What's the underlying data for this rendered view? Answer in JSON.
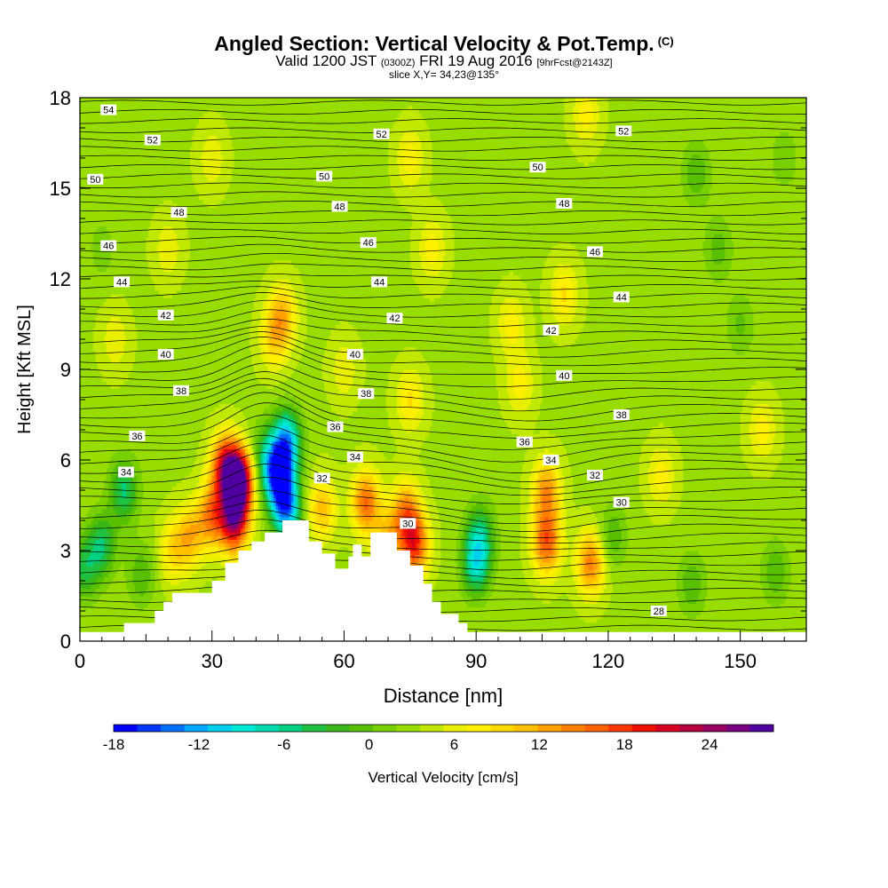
{
  "title": {
    "main": "Angled Section: Vertical Velocity & Pot.Temp.",
    "copyright": "(C)",
    "valid_a": "Valid 1200 JST",
    "valid_z": "(0300Z)",
    "valid_b": "FRI 19 Aug 2016",
    "fcst": "[9hrFcst@2143Z]",
    "slice": "slice X,Y= 34,23@135°"
  },
  "chart_data": {
    "type": "heatmap",
    "xlabel": "Distance [nm]",
    "ylabel": "Height [Kft MSL]",
    "xlim": [
      0,
      165
    ],
    "ylim": [
      0,
      18
    ],
    "xticks": [
      0,
      30,
      60,
      90,
      120,
      150
    ],
    "yticks": [
      0,
      3,
      6,
      9,
      12,
      15,
      18
    ],
    "colorbar": {
      "label": "Vertical Velocity [cm/s]",
      "ticks": [
        -18,
        -12,
        -6,
        0,
        6,
        12,
        18,
        24
      ],
      "range": [
        -18,
        28.5
      ],
      "step": 1.5,
      "colors": [
        "#0000ff",
        "#0038ff",
        "#0070ff",
        "#00a8ff",
        "#00d0f0",
        "#00e8d8",
        "#00dcb0",
        "#00d080",
        "#20c040",
        "#38b818",
        "#58c000",
        "#78d000",
        "#98dc00",
        "#c0e800",
        "#e8f000",
        "#fff000",
        "#ffd800",
        "#ffc000",
        "#ffa000",
        "#ff8000",
        "#ff6000",
        "#ff3800",
        "#f01000",
        "#d80020",
        "#b80040",
        "#980060",
        "#780080",
        "#5000a0"
      ]
    },
    "terrain_profile": [
      [
        0,
        0.3
      ],
      [
        10,
        0.3
      ],
      [
        10,
        0.6
      ],
      [
        17,
        0.6
      ],
      [
        17,
        1.0
      ],
      [
        19,
        1.0
      ],
      [
        19,
        1.3
      ],
      [
        21,
        1.3
      ],
      [
        21,
        1.6
      ],
      [
        30,
        1.6
      ],
      [
        30,
        2.0
      ],
      [
        33,
        2.0
      ],
      [
        33,
        2.6
      ],
      [
        36,
        2.6
      ],
      [
        36,
        3.0
      ],
      [
        39,
        3.0
      ],
      [
        39,
        3.3
      ],
      [
        42,
        3.3
      ],
      [
        42,
        3.6
      ],
      [
        46,
        3.6
      ],
      [
        46,
        4.0
      ],
      [
        52,
        4.0
      ],
      [
        52,
        3.3
      ],
      [
        55,
        3.3
      ],
      [
        55,
        2.9
      ],
      [
        58,
        2.9
      ],
      [
        58,
        2.4
      ],
      [
        61,
        2.4
      ],
      [
        61,
        2.8
      ],
      [
        62,
        2.8
      ],
      [
        62,
        3.2
      ],
      [
        64,
        3.2
      ],
      [
        64,
        2.8
      ],
      [
        66,
        2.8
      ],
      [
        66,
        3.6
      ],
      [
        72,
        3.6
      ],
      [
        72,
        3.0
      ],
      [
        75,
        3.0
      ],
      [
        75,
        2.5
      ],
      [
        78,
        2.5
      ],
      [
        78,
        1.9
      ],
      [
        80,
        1.9
      ],
      [
        80,
        1.3
      ],
      [
        82,
        1.3
      ],
      [
        82,
        0.9
      ],
      [
        86,
        0.9
      ],
      [
        86,
        0.6
      ],
      [
        88,
        0.6
      ],
      [
        88,
        0.3
      ],
      [
        165,
        0.3
      ]
    ],
    "contour_labels": [
      {
        "text": "54",
        "x": 6.5,
        "y": 17.6
      },
      {
        "text": "52",
        "x": 16.5,
        "y": 16.6
      },
      {
        "text": "52",
        "x": 68.5,
        "y": 16.8
      },
      {
        "text": "52",
        "x": 123.5,
        "y": 16.9
      },
      {
        "text": "50",
        "x": 3.5,
        "y": 15.3
      },
      {
        "text": "50",
        "x": 55.5,
        "y": 15.4
      },
      {
        "text": "50",
        "x": 104,
        "y": 15.7
      },
      {
        "text": "48",
        "x": 22.5,
        "y": 14.2
      },
      {
        "text": "48",
        "x": 59,
        "y": 14.4
      },
      {
        "text": "48",
        "x": 110,
        "y": 14.5
      },
      {
        "text": "46",
        "x": 6.5,
        "y": 13.1
      },
      {
        "text": "46",
        "x": 65.5,
        "y": 13.2
      },
      {
        "text": "46",
        "x": 117,
        "y": 12.9
      },
      {
        "text": "44",
        "x": 9.5,
        "y": 11.9
      },
      {
        "text": "44",
        "x": 68,
        "y": 11.9
      },
      {
        "text": "44",
        "x": 123,
        "y": 11.4
      },
      {
        "text": "42",
        "x": 19.5,
        "y": 10.8
      },
      {
        "text": "42",
        "x": 71.5,
        "y": 10.7
      },
      {
        "text": "42",
        "x": 107,
        "y": 10.3
      },
      {
        "text": "40",
        "x": 19.5,
        "y": 9.5
      },
      {
        "text": "40",
        "x": 62.5,
        "y": 9.5
      },
      {
        "text": "40",
        "x": 110,
        "y": 8.8
      },
      {
        "text": "38",
        "x": 23,
        "y": 8.3
      },
      {
        "text": "38",
        "x": 65,
        "y": 8.2
      },
      {
        "text": "38",
        "x": 123,
        "y": 7.5
      },
      {
        "text": "36",
        "x": 13,
        "y": 6.8
      },
      {
        "text": "36",
        "x": 58,
        "y": 7.1
      },
      {
        "text": "36",
        "x": 101,
        "y": 6.6
      },
      {
        "text": "34",
        "x": 10.5,
        "y": 5.6
      },
      {
        "text": "34",
        "x": 62.5,
        "y": 6.1
      },
      {
        "text": "34",
        "x": 107,
        "y": 6.0
      },
      {
        "text": "32",
        "x": 55,
        "y": 5.4
      },
      {
        "text": "32",
        "x": 117,
        "y": 5.5
      },
      {
        "text": "30",
        "x": 74.5,
        "y": 3.9
      },
      {
        "text": "30",
        "x": 123,
        "y": 4.6
      },
      {
        "text": "28",
        "x": 131.5,
        "y": 1.0
      }
    ],
    "velocity_features": [
      {
        "x": 36,
        "y": 5.3,
        "v": 23.5
      },
      {
        "x": 35,
        "y": 4.0,
        "v": 17
      },
      {
        "x": 33,
        "y": 5.8,
        "v": 14
      },
      {
        "x": 30,
        "y": 4.2,
        "v": 10
      },
      {
        "x": 25,
        "y": 3.5,
        "v": 7
      },
      {
        "x": 21,
        "y": 3.0,
        "v": 5
      },
      {
        "x": 45,
        "y": 5.5,
        "v": -17
      },
      {
        "x": 47,
        "y": 6.6,
        "v": -13
      },
      {
        "x": 47,
        "y": 4.4,
        "v": -14
      },
      {
        "x": 42,
        "y": 6.2,
        "v": -5
      },
      {
        "x": 10,
        "y": 5.0,
        "v": -7.5
      },
      {
        "x": 5,
        "y": 3.2,
        "v": -7
      },
      {
        "x": 1,
        "y": 2.4,
        "v": -6
      },
      {
        "x": 14,
        "y": 2.2,
        "v": -4
      },
      {
        "x": 55,
        "y": 4.4,
        "v": 7
      },
      {
        "x": 65,
        "y": 4.6,
        "v": 11
      },
      {
        "x": 70,
        "y": 3.4,
        "v": 6
      },
      {
        "x": 76,
        "y": 3.2,
        "v": 13
      },
      {
        "x": 74,
        "y": 4.3,
        "v": 9
      },
      {
        "x": 90,
        "y": 2.6,
        "v": -10
      },
      {
        "x": 91,
        "y": 3.6,
        "v": -6
      },
      {
        "x": 106,
        "y": 3.3,
        "v": 12
      },
      {
        "x": 106,
        "y": 5.0,
        "v": 9
      },
      {
        "x": 116,
        "y": 2.6,
        "v": 10
      },
      {
        "x": 121,
        "y": 3.5,
        "v": -4
      },
      {
        "x": 139,
        "y": 1.9,
        "v": -4
      },
      {
        "x": 158,
        "y": 2.3,
        "v": -4
      },
      {
        "x": 132,
        "y": 5.5,
        "v": 4
      },
      {
        "x": 44,
        "y": 10,
        "v": 5
      },
      {
        "x": 46,
        "y": 10.8,
        "v": 7
      },
      {
        "x": 75,
        "y": 8,
        "v": 5
      },
      {
        "x": 98,
        "y": 10.5,
        "v": 4
      },
      {
        "x": 100,
        "y": 8.5,
        "v": 4
      },
      {
        "x": 110,
        "y": 11.5,
        "v": 5
      },
      {
        "x": 80,
        "y": 13,
        "v": 4
      },
      {
        "x": 75,
        "y": 16,
        "v": 4
      },
      {
        "x": 140,
        "y": 15.5,
        "v": -4
      },
      {
        "x": 145,
        "y": 13,
        "v": -3.5
      },
      {
        "x": 150,
        "y": 10.5,
        "v": -3
      },
      {
        "x": 160,
        "y": 16,
        "v": -2.5
      },
      {
        "x": 5,
        "y": 13,
        "v": -2
      },
      {
        "x": 8,
        "y": 10,
        "v": 3
      },
      {
        "x": 20,
        "y": 13,
        "v": 3
      },
      {
        "x": 30,
        "y": 16,
        "v": 3
      },
      {
        "x": 115,
        "y": 17.5,
        "v": 4
      },
      {
        "x": 155,
        "y": 7,
        "v": 4
      },
      {
        "x": 60,
        "y": 9,
        "v": 3
      }
    ]
  }
}
